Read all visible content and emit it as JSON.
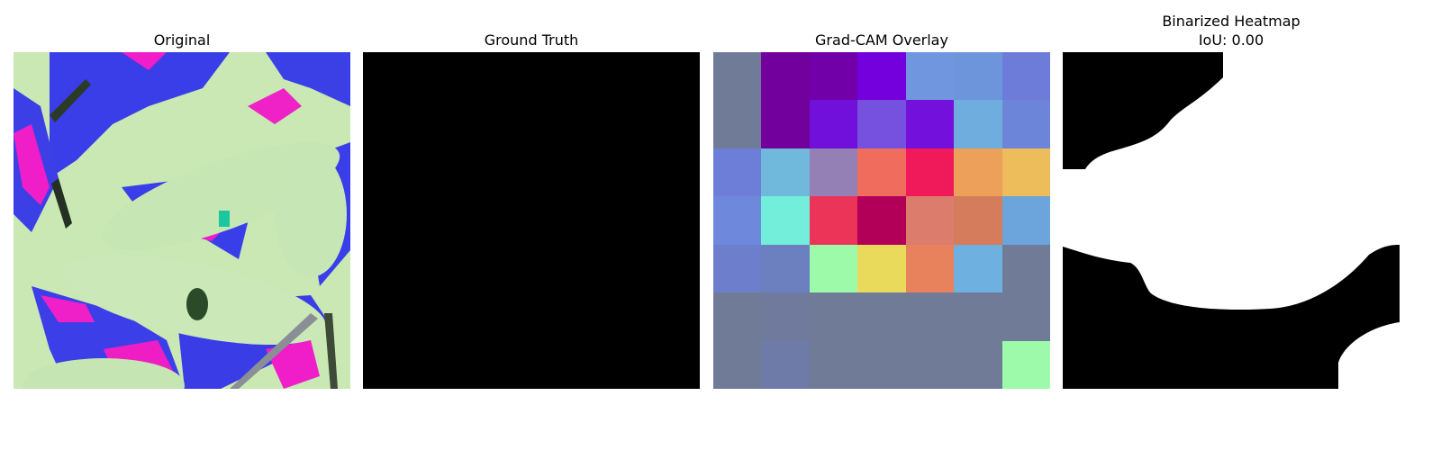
{
  "panels": {
    "original": {
      "title": "Original"
    },
    "ground_truth": {
      "title": "Ground Truth"
    },
    "gradcam": {
      "title": "Grad-CAM Overlay",
      "cells": [
        [
          "#707b98",
          "#72009c",
          "#7200a8",
          "#7400dd",
          "#7096df",
          "#6c95dc",
          "#6d7cd8"
        ],
        [
          "#707b98",
          "#72009c",
          "#7010da",
          "#7650de",
          "#7410dc",
          "#6eadde",
          "#6d85d8"
        ],
        [
          "#6d7ed8",
          "#70b8dc",
          "#9480b4",
          "#f06c5c",
          "#f01a5a",
          "#eca05a",
          "#ecbd5a"
        ],
        [
          "#6e88dc",
          "#72eedb",
          "#ec3458",
          "#b20058",
          "#dc7c6c",
          "#d47c5c",
          "#6ca4dc"
        ],
        [
          "#6d7ecc",
          "#6c80c0",
          "#9cfaa8",
          "#eada5c",
          "#e8825c",
          "#6eb0e0",
          "#707b98"
        ],
        [
          "#707b98",
          "#707a9c",
          "#707b98",
          "#707b98",
          "#707b98",
          "#707b98",
          "#707b98"
        ],
        [
          "#707b98",
          "#6e7aa8",
          "#707b98",
          "#707b98",
          "#707b98",
          "#707b98",
          "#9cfaaa"
        ]
      ]
    },
    "binarized": {
      "title_line1": "Binarized Heatmap",
      "title_line2": "IoU: 0.00"
    }
  }
}
